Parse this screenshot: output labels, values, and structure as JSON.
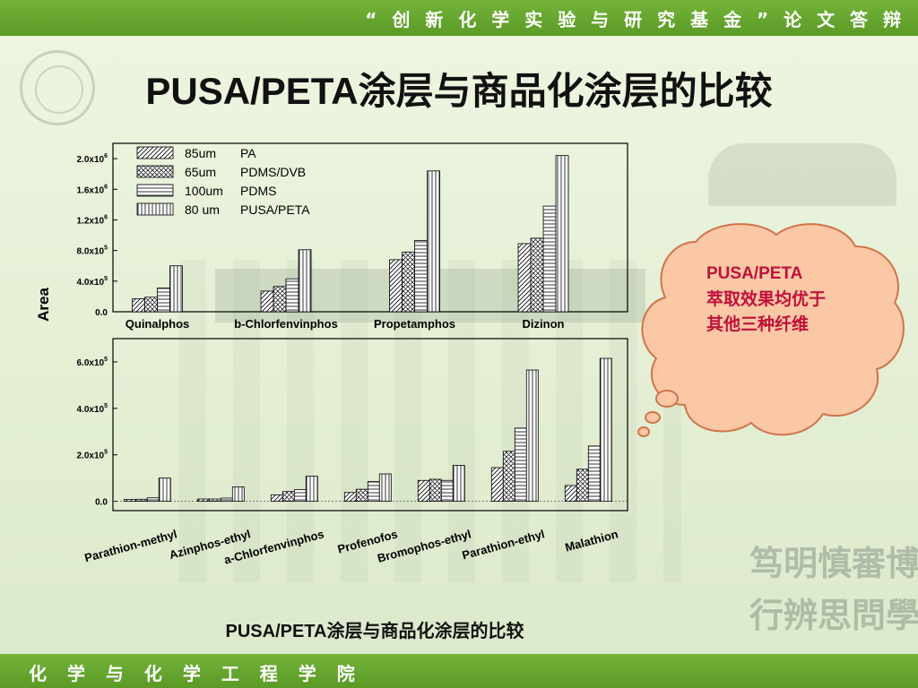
{
  "header": {
    "banner": "“ 创 新 化 学 实 验 与 研 究 基 金 ” 论 文 答 辩"
  },
  "footer": {
    "school": "化 学 与 化 学 工 程 学 院"
  },
  "slide": {
    "title": "PUSA/PETA涂层与商品化涂层的比较",
    "caption": "PUSA/PETA涂层与商品化涂层的比较",
    "motto_line1": "笃明慎審博",
    "motto_line2": "行辨思問學",
    "callout_line1": "PUSA/PETA",
    "callout_line2": "萃取效果均优于",
    "callout_line3": "其他三种纤维"
  },
  "chart_data": [
    {
      "type": "bar",
      "ylabel": "Area",
      "ylim": [
        0,
        2200000
      ],
      "y_ticks": [
        0,
        400000,
        800000,
        1200000,
        1600000,
        2000000
      ],
      "y_tick_labels": [
        "0.0",
        "4.0x10^5",
        "8.0x10^5",
        "1.2x10^6",
        "1.6x10^6",
        "2.0x10^6"
      ],
      "categories": [
        "Quinalphos",
        "b-Chlorfenvinphos",
        "Propetamphos",
        "Dizinon"
      ],
      "legend": {
        "placement": "top-left",
        "entries": [
          {
            "size": "85um",
            "name": "PA"
          },
          {
            "size": "65um",
            "name": "PDMS/DVB"
          },
          {
            "size": "100um",
            "name": "PDMS"
          },
          {
            "size": "80 um",
            "name": "PUSA/PETA"
          }
        ]
      },
      "series": [
        {
          "name": "PA",
          "values": [
            170000,
            270000,
            680000,
            890000
          ]
        },
        {
          "name": "PDMS/DVB",
          "values": [
            190000,
            330000,
            780000,
            960000
          ]
        },
        {
          "name": "PDMS",
          "values": [
            310000,
            430000,
            930000,
            1380000
          ]
        },
        {
          "name": "PUSA/PETA",
          "values": [
            600000,
            810000,
            1840000,
            2040000
          ]
        }
      ]
    },
    {
      "type": "bar",
      "ylabel": "Area",
      "ylim": [
        -40000,
        700000
      ],
      "y_ticks": [
        0,
        200000,
        400000,
        600000
      ],
      "y_tick_labels": [
        "0.0",
        "2.0x10^5",
        "4.0x10^5",
        "6.0x10^5"
      ],
      "categories": [
        "Parathion-methyl",
        "Azinphos-ethyl",
        "a-Chlorfenvinphos",
        "Profenofos",
        "Bromophos-ethyl",
        "Parathion-ethyl",
        "Malathion"
      ],
      "series": [
        {
          "name": "PA",
          "values": [
            8000,
            10000,
            28000,
            38000,
            90000,
            145000,
            68000
          ]
        },
        {
          "name": "PDMS/DVB",
          "values": [
            9000,
            10000,
            42000,
            52000,
            95000,
            215000,
            138000
          ]
        },
        {
          "name": "PDMS",
          "values": [
            15000,
            14000,
            50000,
            85000,
            90000,
            315000,
            238000
          ]
        },
        {
          "name": "PUSA/PETA",
          "values": [
            100000,
            62000,
            108000,
            118000,
            155000,
            565000,
            615000
          ]
        }
      ]
    }
  ]
}
